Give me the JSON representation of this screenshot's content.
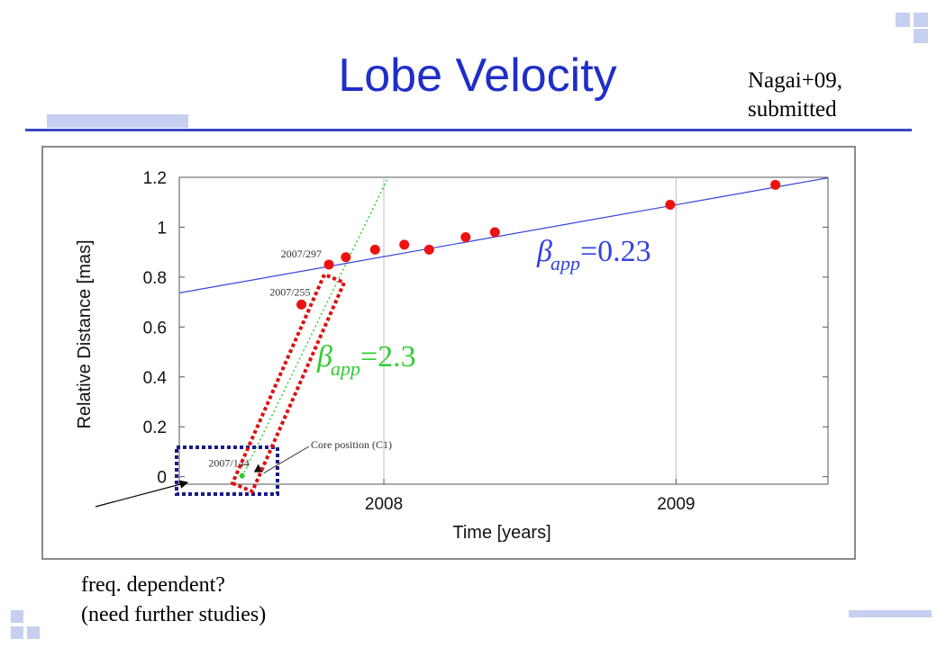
{
  "slide": {
    "title": "Lobe Velocity",
    "citation_line1": "Nagai+09,",
    "citation_line2": "submitted",
    "note_line1": "freq. dependent?",
    "note_line2": "(need further studies)"
  },
  "colors": {
    "title": "#1f2ec8",
    "deco": "#c6cff0",
    "fit_slow": "#3344dd",
    "fit_fast": "#33cc33",
    "points": "#ee1111",
    "highlight_red": "#dd1111",
    "highlight_blue": "#1a1a88"
  },
  "chart_data": {
    "type": "scatter",
    "xlabel": "Time [years]",
    "ylabel": "Relative Distance [mas]",
    "xlim": [
      2007.3,
      2009.52
    ],
    "ylim": [
      -0.03,
      1.2
    ],
    "x_ticks": [
      2008,
      2009
    ],
    "x_tick_labels": [
      "2008",
      "2009"
    ],
    "y_ticks": [
      0,
      0.2,
      0.4,
      0.6,
      0.8,
      1.0,
      1.2
    ],
    "y_tick_labels": [
      "0",
      "0.2",
      "0.4",
      "0.6",
      "0.8",
      "1",
      "1.2"
    ],
    "grid": "vertical",
    "series": [
      {
        "values_x": [
          2007.718,
          2007.812,
          2007.87,
          2007.97,
          2008.07,
          2008.155,
          2008.28,
          2008.38,
          2008.98,
          2009.34
        ],
        "values_y": [
          0.69,
          0.85,
          0.88,
          0.91,
          0.93,
          0.91,
          0.96,
          0.98,
          1.09,
          1.17
        ]
      }
    ],
    "core": {
      "x": 2007.515,
      "y": 0.0
    },
    "annotations": [
      {
        "text": "2007/297",
        "x": 2007.812,
        "y": 0.85
      },
      {
        "text": "2007/255",
        "x": 2007.718,
        "y": 0.69
      },
      {
        "text": "2007/144",
        "x": 2007.515,
        "y": 0.0
      },
      {
        "text": "Core position (C1)",
        "x": 2007.53,
        "y": 0.01
      }
    ],
    "fits": [
      {
        "label_symbol": "β",
        "label_sub": "app",
        "label_value": "=0.23",
        "slope": 0.2078,
        "intercept_x": 2008.0,
        "intercept_y": 0.882,
        "style": "solid"
      },
      {
        "label_symbol": "β",
        "label_sub": "app",
        "label_value": "=2.3",
        "slope": 2.4,
        "intercept_x": 2007.515,
        "intercept_y": 0.0,
        "style": "dotted"
      }
    ]
  }
}
